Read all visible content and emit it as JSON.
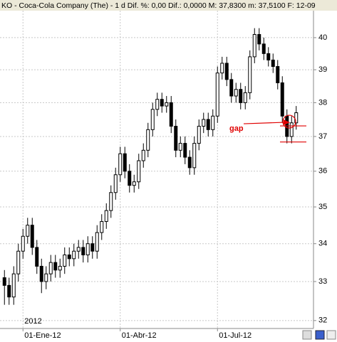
{
  "chart_data": {
    "type": "candlestick",
    "title": "KO - Coca-Cola Company (The) - 1 d  Dif. %: 0,00  Dif.: 0,0000  M: 37,8300  m: 37,5100  F: 12-09",
    "year_label": "2012",
    "annotation": "gap",
    "annotation_levels": [
      37.31,
      36.84
    ],
    "log_scale": true,
    "grid": true,
    "categories": [
      null,
      null,
      null,
      null,
      "01-Ene-12",
      null,
      null,
      null,
      null,
      null,
      null,
      null,
      null,
      null,
      null,
      null,
      null,
      null,
      null,
      null,
      null,
      null,
      null,
      null,
      null,
      "01-Abr-12",
      null,
      null,
      null,
      null,
      null,
      null,
      null,
      null,
      null,
      null,
      null,
      null,
      null,
      null,
      null,
      null,
      null,
      null,
      null,
      null,
      "01-Jul-12",
      null,
      null,
      null,
      null,
      null,
      null,
      null,
      null,
      null,
      null,
      null,
      null,
      null,
      null,
      null,
      null,
      null
    ],
    "open": [
      33.1,
      32.9,
      32.6,
      33.2,
      33.8,
      34.2,
      34.5,
      33.9,
      33.4,
      33.0,
      33.2,
      33.5,
      33.3,
      33.4,
      33.7,
      33.6,
      33.8,
      33.9,
      33.7,
      34.0,
      33.8,
      34.3,
      34.6,
      34.9,
      35.4,
      35.9,
      36.5,
      36.0,
      35.6,
      35.7,
      36.3,
      36.6,
      37.2,
      37.8,
      38.1,
      37.9,
      38.0,
      37.3,
      36.6,
      36.8,
      36.4,
      36.1,
      36.8,
      37.3,
      37.5,
      37.2,
      37.6,
      38.9,
      39.2,
      38.7,
      38.2,
      38.4,
      38.0,
      38.3,
      39.4,
      40.1,
      39.8,
      39.5,
      39.3,
      39.1,
      38.6,
      37.6,
      37.0,
      37.4
    ],
    "high": [
      33.3,
      33.1,
      33.4,
      34.0,
      34.4,
      34.7,
      34.7,
      34.1,
      33.6,
      33.4,
      33.7,
      33.7,
      33.6,
      33.9,
      33.9,
      34.0,
      34.1,
      34.1,
      34.2,
      34.2,
      34.5,
      34.8,
      35.1,
      35.6,
      36.1,
      36.7,
      36.7,
      36.2,
      35.9,
      36.5,
      36.8,
      37.4,
      38.0,
      38.3,
      38.3,
      38.2,
      38.2,
      37.5,
      37.0,
      37.0,
      36.6,
      37.0,
      37.5,
      37.7,
      37.7,
      37.8,
      39.1,
      39.4,
      39.4,
      38.9,
      38.6,
      38.6,
      38.5,
      39.6,
      40.3,
      40.3,
      40.0,
      39.7,
      39.5,
      39.3,
      38.8,
      37.8,
      37.6,
      37.9
    ],
    "low": [
      32.4,
      32.4,
      32.4,
      33.0,
      33.6,
      34.0,
      33.7,
      33.2,
      32.7,
      32.8,
      33.0,
      33.1,
      33.1,
      33.2,
      33.4,
      33.4,
      33.6,
      33.5,
      33.5,
      33.6,
      33.6,
      34.1,
      34.4,
      34.7,
      35.2,
      35.7,
      35.8,
      35.4,
      35.4,
      35.5,
      36.1,
      36.4,
      37.0,
      37.6,
      37.7,
      37.7,
      37.1,
      36.4,
      36.4,
      36.2,
      35.9,
      35.9,
      36.6,
      37.1,
      37.0,
      37.0,
      37.4,
      38.7,
      38.5,
      38.0,
      38.0,
      37.8,
      37.8,
      38.1,
      39.2,
      39.6,
      39.3,
      39.1,
      38.9,
      38.4,
      37.4,
      36.8,
      36.8,
      37.2
    ],
    "close": [
      32.9,
      32.6,
      33.2,
      33.8,
      34.2,
      34.5,
      33.9,
      33.4,
      33.0,
      33.2,
      33.5,
      33.3,
      33.4,
      33.7,
      33.6,
      33.8,
      33.9,
      33.7,
      34.0,
      33.8,
      34.3,
      34.6,
      34.9,
      35.4,
      35.9,
      36.5,
      36.0,
      35.6,
      35.7,
      36.3,
      36.6,
      37.2,
      37.8,
      38.1,
      37.9,
      38.0,
      37.3,
      36.6,
      36.8,
      36.4,
      36.1,
      36.8,
      37.3,
      37.5,
      37.2,
      37.6,
      38.9,
      39.2,
      38.7,
      38.2,
      38.4,
      38.0,
      38.3,
      39.4,
      40.1,
      39.8,
      39.5,
      39.3,
      39.1,
      38.6,
      37.6,
      37.0,
      37.4,
      37.7
    ],
    "ylim": [
      31.8,
      40.86
    ],
    "yticks": [
      32,
      33,
      34,
      35,
      36,
      37,
      38,
      39,
      40
    ]
  }
}
